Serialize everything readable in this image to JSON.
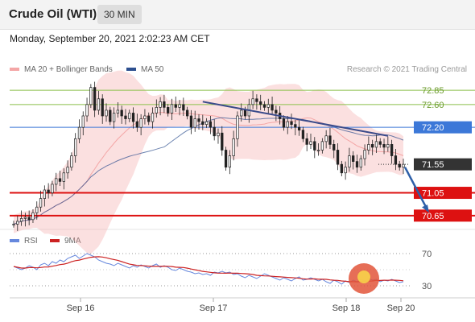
{
  "header": {
    "instrument": "Crude Oil (WTI)",
    "timeframe": "30 MIN",
    "timestamp": "Monday, September 20, 2021 2:02:23 AM CET"
  },
  "legend": {
    "bollinger": "MA 20 + Bollinger Bands",
    "ma50": "MA 50",
    "rsi": "RSI",
    "rsi_ma": "9MA",
    "credit": "Research © 2021 Trading Central"
  },
  "colors": {
    "bollinger": "#f4a6a6",
    "ma50": "#2d4f8f",
    "candle": "#222222",
    "support": "#dd1111",
    "resistance": "#3c78d8",
    "pivot": "#333333",
    "target_band": "#8bbf4a",
    "rsi": "#6688dd",
    "rsi_ma": "#cc2222"
  },
  "chart_data": [
    {
      "type": "candlestick",
      "title": "Crude Oil (WTI)",
      "timeframe": "30 MIN",
      "x_tick_labels": [
        "Sep 16",
        "Sep 17",
        "Sep 18",
        "Sep 20"
      ],
      "ylim": [
        70.45,
        73.05
      ],
      "close": [
        70.5,
        70.55,
        70.6,
        70.62,
        70.58,
        70.7,
        70.8,
        70.95,
        71.1,
        71.05,
        71.2,
        71.3,
        71.25,
        71.4,
        71.5,
        71.7,
        72.0,
        72.2,
        72.4,
        72.6,
        72.9,
        72.5,
        72.7,
        72.4,
        72.5,
        72.3,
        72.45,
        72.5,
        72.4,
        72.35,
        72.45,
        72.3,
        72.2,
        72.35,
        72.4,
        72.3,
        72.45,
        72.55,
        72.65,
        72.55,
        72.45,
        72.6,
        72.55,
        72.6,
        72.5,
        72.4,
        72.2,
        72.35,
        72.3,
        72.25,
        72.3,
        72.2,
        72.05,
        72.1,
        71.8,
        71.5,
        71.7,
        72.0,
        72.4,
        72.5,
        72.4,
        72.6,
        72.7,
        72.65,
        72.6,
        72.55,
        72.6,
        72.5,
        72.45,
        72.35,
        72.2,
        72.3,
        72.25,
        72.2,
        72.15,
        72.0,
        71.9,
        71.95,
        71.8,
        71.8,
        71.95,
        72.05,
        71.9,
        71.8,
        71.55,
        71.4,
        71.5,
        71.7,
        71.6,
        71.5,
        71.65,
        71.8,
        71.9,
        71.85,
        71.95,
        71.9,
        71.85,
        71.9,
        71.7,
        71.55,
        71.5,
        71.55
      ],
      "levels": [
        {
          "value": 72.85,
          "label": "72.85",
          "role": "target"
        },
        {
          "value": 72.6,
          "label": "72.60",
          "role": "target"
        },
        {
          "value": 72.2,
          "label": "72.20",
          "role": "resistance"
        },
        {
          "value": 71.55,
          "label": "71.55",
          "role": "last"
        },
        {
          "value": 71.05,
          "label": "71.05",
          "role": "support"
        },
        {
          "value": 70.65,
          "label": "70.65",
          "role": "support"
        }
      ]
    },
    {
      "type": "line",
      "series": [
        {
          "name": "RSI"
        },
        {
          "name": "9MA"
        }
      ],
      "ytick_labels": [
        "70",
        "30"
      ],
      "rsi_values": [
        54,
        52,
        50,
        52,
        55,
        53,
        50,
        56,
        58,
        55,
        60,
        58,
        62,
        60,
        64,
        66,
        68,
        64,
        67,
        70,
        68,
        66,
        62,
        60,
        58,
        57,
        55,
        58,
        56,
        54,
        52,
        55,
        53,
        56,
        54,
        52,
        55,
        57,
        53,
        55,
        53,
        50,
        49,
        52,
        50,
        48,
        47,
        45,
        46,
        44,
        45,
        43,
        47,
        46,
        48,
        46,
        47,
        44,
        45,
        42,
        40,
        43,
        41,
        39,
        42,
        45,
        43,
        41,
        39,
        37,
        40,
        38,
        36,
        39,
        41,
        37,
        38,
        40,
        38,
        36,
        38,
        35,
        33,
        37,
        35,
        32,
        36,
        34,
        37,
        35,
        38,
        36,
        39,
        37,
        38,
        35,
        37,
        36,
        38,
        36,
        34,
        35
      ]
    }
  ]
}
